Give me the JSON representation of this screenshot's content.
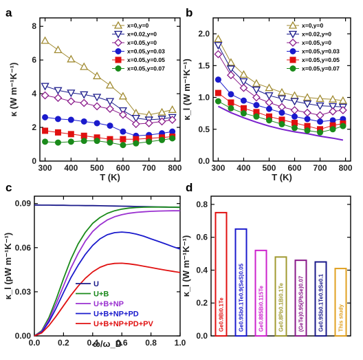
{
  "chart_data": [
    {
      "panel": "a",
      "type": "line",
      "xlabel": "T (K)",
      "ylabel": "κ (W m⁻¹K⁻¹)",
      "xlim": [
        280,
        820
      ],
      "ylim": [
        0,
        8.5
      ],
      "xticks": [
        300,
        400,
        500,
        600,
        700,
        800
      ],
      "yticks": [
        0,
        2,
        4,
        6,
        8
      ],
      "x": [
        300,
        350,
        400,
        450,
        500,
        550,
        600,
        650,
        700,
        750,
        790
      ],
      "legend_position": "top-right",
      "series": [
        {
          "name": "x=0,y=0",
          "color": "#a08a30",
          "marker": "triangle-up-open",
          "values": [
            7.15,
            6.6,
            6.05,
            5.6,
            5.05,
            4.5,
            3.85,
            2.85,
            2.75,
            2.9,
            3.05
          ]
        },
        {
          "name": "x=0.02,y=0",
          "color": "#1a1a8a",
          "marker": "triangle-down-open",
          "values": [
            4.45,
            4.2,
            4.05,
            3.95,
            3.8,
            3.55,
            3.0,
            2.55,
            2.45,
            2.5,
            2.6
          ]
        },
        {
          "name": "x=0.05,y=0",
          "color": "#8a1a8a",
          "marker": "diamond-open",
          "values": [
            3.9,
            3.75,
            3.55,
            3.45,
            3.25,
            3.1,
            2.75,
            2.2,
            2.25,
            2.35,
            2.45
          ]
        },
        {
          "name": "x=0.05,y=0.03",
          "color": "#1a1acc",
          "marker": "circle",
          "values": [
            2.6,
            2.5,
            2.45,
            2.35,
            2.25,
            2.1,
            1.75,
            1.5,
            1.55,
            1.65,
            1.75
          ]
        },
        {
          "name": "x=0.05,y=0.05",
          "color": "#e01010",
          "marker": "square",
          "values": [
            1.8,
            1.7,
            1.6,
            1.5,
            1.4,
            1.3,
            1.3,
            1.3,
            1.35,
            1.4,
            1.45
          ]
        },
        {
          "name": "x=0.05,y=0.07",
          "color": "#1a8a1a",
          "marker": "circle",
          "values": [
            1.15,
            1.1,
            1.15,
            1.2,
            1.2,
            1.1,
            0.95,
            1.05,
            1.15,
            1.25,
            1.35
          ]
        }
      ]
    },
    {
      "panel": "b",
      "type": "line",
      "xlabel": "T (K)",
      "ylabel": "κ_l (W m⁻¹K⁻¹)",
      "xlim": [
        280,
        820
      ],
      "ylim": [
        0,
        2.25
      ],
      "xticks": [
        300,
        400,
        500,
        600,
        700,
        800
      ],
      "yticks": [
        0,
        0.5,
        1.0,
        1.5,
        2.0
      ],
      "x": [
        300,
        350,
        400,
        450,
        500,
        550,
        600,
        650,
        700,
        750,
        790
      ],
      "legend_position": "top-right",
      "series": [
        {
          "name": "x=0,y=0",
          "color": "#a08a30",
          "marker": "triangle-up-open",
          "values": [
            1.92,
            1.55,
            1.36,
            1.22,
            1.15,
            1.08,
            1.03,
            1.0,
            0.98,
            0.97,
            0.95
          ]
        },
        {
          "name": "x=0.02,y=0",
          "color": "#1a1a8a",
          "marker": "triangle-down-open",
          "values": [
            1.82,
            1.45,
            1.25,
            1.12,
            1.03,
            0.98,
            0.94,
            0.9,
            0.87,
            0.86,
            0.85
          ]
        },
        {
          "name": "x=0.05,y=0",
          "color": "#8a1a8a",
          "marker": "diamond-open",
          "values": [
            1.68,
            1.35,
            1.15,
            1.0,
            0.92,
            0.85,
            0.8,
            0.76,
            0.72,
            0.78,
            0.8
          ]
        },
        {
          "name": "x=0.05,y=0.03",
          "color": "#1a1acc",
          "marker": "circle",
          "values": [
            1.28,
            1.05,
            0.95,
            0.88,
            0.82,
            0.76,
            0.7,
            0.66,
            0.62,
            0.64,
            0.66
          ]
        },
        {
          "name": "x=0.05,y=0.05",
          "color": "#e01010",
          "marker": "square",
          "values": [
            1.07,
            0.92,
            0.83,
            0.77,
            0.7,
            0.65,
            0.6,
            0.55,
            0.5,
            0.56,
            0.59
          ]
        },
        {
          "name": "x=0.05,y=0.07",
          "color": "#1a8a1a",
          "marker": "circle",
          "values": [
            0.94,
            0.83,
            0.75,
            0.7,
            0.64,
            0.58,
            0.52,
            0.48,
            0.45,
            0.5,
            0.55
          ]
        }
      ],
      "reference_curve": {
        "color": "#7a20cc",
        "x": [
          300,
          350,
          400,
          450,
          500,
          550,
          600,
          650,
          700,
          750,
          790
        ],
        "values": [
          0.86,
          0.76,
          0.68,
          0.61,
          0.55,
          0.5,
          0.46,
          0.43,
          0.39,
          0.36,
          0.33
        ]
      }
    },
    {
      "panel": "c",
      "type": "line",
      "xlabel": "ω/ω_D",
      "ylabel": "κ_l (pW m⁻¹K⁻¹)",
      "xlim": [
        0,
        1.0
      ],
      "ylim": [
        0,
        0.095
      ],
      "xticks": [
        0.0,
        0.2,
        0.4,
        0.6,
        0.8,
        1.0
      ],
      "xticklabels": [
        "0.0",
        "0.2",
        "0.4",
        "0.6",
        "0.8",
        "1.0"
      ],
      "yticks": [
        0,
        0.03,
        0.06,
        0.09
      ],
      "yticklabels": [
        "0.00",
        "0.03",
        "0.06",
        "0.09"
      ],
      "legend_position": "bottom-center",
      "x": [
        0,
        0.05,
        0.1,
        0.15,
        0.2,
        0.25,
        0.3,
        0.35,
        0.4,
        0.45,
        0.5,
        0.55,
        0.6,
        0.65,
        0.7,
        0.75,
        0.8,
        0.85,
        0.9,
        0.95,
        1.0
      ],
      "series": [
        {
          "name": "U",
          "color": "#1a1a8a",
          "values": [
            0.089,
            0.0889,
            0.0889,
            0.0888,
            0.0888,
            0.0887,
            0.0887,
            0.0886,
            0.0886,
            0.0885,
            0.0884,
            0.0883,
            0.0882,
            0.0881,
            0.088,
            0.0879,
            0.0878,
            0.0877,
            0.0876,
            0.0875,
            0.0874
          ]
        },
        {
          "name": "U+B",
          "color": "#1a8a1a",
          "values": [
            0,
            0.0035,
            0.0125,
            0.025,
            0.039,
            0.052,
            0.0625,
            0.0705,
            0.0765,
            0.0805,
            0.0833,
            0.0851,
            0.0862,
            0.0869,
            0.0873,
            0.0875,
            0.0876,
            0.0876,
            0.0876,
            0.0875,
            0.0874
          ]
        },
        {
          "name": "U+B+NP",
          "color": "#9a30d0",
          "values": [
            0,
            0.003,
            0.011,
            0.022,
            0.034,
            0.046,
            0.056,
            0.0645,
            0.071,
            0.0755,
            0.0788,
            0.081,
            0.0824,
            0.0834,
            0.084,
            0.0844,
            0.0847,
            0.0849,
            0.085,
            0.0851,
            0.0851
          ]
        },
        {
          "name": "U+B+NP+PD",
          "color": "#1a1acc",
          "values": [
            0,
            0.0025,
            0.0095,
            0.019,
            0.0295,
            0.0395,
            0.048,
            0.0555,
            0.0615,
            0.066,
            0.0688,
            0.0702,
            0.0706,
            0.0702,
            0.0692,
            0.0678,
            0.066,
            0.0643,
            0.0625,
            0.0607,
            0.059
          ]
        },
        {
          "name": "U+B+NP+PD+PV",
          "color": "#e01010",
          "values": [
            0,
            0.002,
            0.007,
            0.0135,
            0.0205,
            0.0275,
            0.0338,
            0.0392,
            0.0435,
            0.0466,
            0.0485,
            0.0493,
            0.0494,
            0.049,
            0.0483,
            0.0474,
            0.0465,
            0.0456,
            0.0447,
            0.0439,
            0.0431
          ]
        }
      ]
    },
    {
      "panel": "d",
      "type": "bar",
      "ylabel": "κ_l (W m⁻¹K⁻¹)",
      "ylim": [
        0,
        0.85
      ],
      "yticks": [
        0.0,
        0.2,
        0.4,
        0.6,
        0.8
      ],
      "yticklabels": [
        "0.0",
        "0.2",
        "0.4",
        "0.6",
        "0.8"
      ],
      "categories": [
        "Ge0.9Bi0.1Te",
        "Ge0.9Sb0.1Te0.9(SeS)0.05",
        "Ge0.885Bi0.115Te",
        "Ge0.8Pb0.1Bi0.1Te",
        "(GeTe)0.95(PbSe)0.07",
        "Ge0.9Sb0.1Te0.9Se0.1",
        "This study"
      ],
      "values": [
        0.75,
        0.65,
        0.52,
        0.48,
        0.46,
        0.45,
        0.41
      ],
      "colors": [
        "#e01010",
        "#1a1acc",
        "#cc22cc",
        "#a09a30",
        "#8a1a8a",
        "#1a1a8a",
        "#e0a020"
      ]
    }
  ],
  "panel_labels": {
    "a": "a",
    "b": "b",
    "c": "c",
    "d": "d"
  },
  "axis_text": {
    "a_x": "T (K)",
    "a_y": "κ (W m⁻¹K⁻¹)",
    "b_x": "T (K)",
    "b_y": "κ_l (W m⁻¹K⁻¹)",
    "c_x": "ω/ω_D",
    "c_y": "κ_l (pW m⁻¹K⁻¹)",
    "d_y": "κ_l (W m⁻¹K⁻¹)"
  }
}
